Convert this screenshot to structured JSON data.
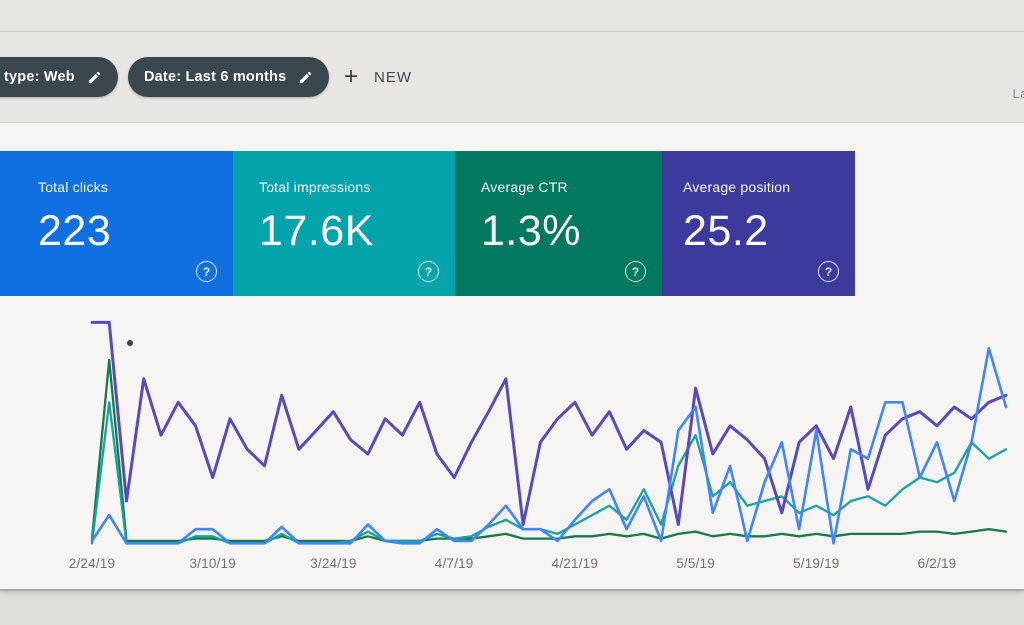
{
  "toolbar": {
    "chips": [
      {
        "label": "type: Web",
        "icon": "pencil-icon"
      },
      {
        "label": "Date: Last 6 months",
        "icon": "pencil-icon"
      }
    ],
    "new_button": {
      "label": "NEW"
    },
    "top_right_partial_text": "La"
  },
  "icons": {
    "plus": "+",
    "help": "?"
  },
  "metric_cards": [
    {
      "label": "Total clicks",
      "value": "223",
      "color": "#1170e0"
    },
    {
      "label": "Total impressions",
      "value": "17.6K",
      "color": "#02a3ab"
    },
    {
      "label": "Average CTR",
      "value": "1.3%",
      "color": "#00795f"
    },
    {
      "label": "Average position",
      "value": "25.2",
      "color": "#3d3a9e"
    }
  ],
  "chart_data": {
    "type": "line",
    "title": "",
    "xlabel": "",
    "ylabel": "",
    "y_axis_note": "no y-axis shown; each series independently scaled; values are percent of plot height",
    "x_range": "2/24/19 to ~6/10/19, one point per ~2 days",
    "grid": "off",
    "legend": "none (colors match metric cards)",
    "x_tick_labels": [
      "2/24/19",
      "3/10/19",
      "3/24/19",
      "4/7/19",
      "4/21/19",
      "5/5/19",
      "5/19/19",
      "6/2/19"
    ],
    "x_tick_indices": [
      0,
      7,
      14,
      21,
      28,
      35,
      42,
      49
    ],
    "series": [
      {
        "name": "Clicks",
        "color": "#4285f4",
        "values": [
          3,
          14,
          2,
          2,
          2,
          2,
          8,
          8,
          2,
          2,
          2,
          9,
          2,
          2,
          2,
          2,
          10,
          3,
          2,
          2,
          8,
          3,
          3,
          10,
          18,
          8,
          8,
          3,
          12,
          20,
          25,
          8,
          22,
          3,
          50,
          60,
          15,
          35,
          3,
          28,
          45,
          8,
          50,
          2,
          42,
          38,
          62,
          62,
          30,
          45,
          20,
          45,
          85,
          60
        ]
      },
      {
        "name": "Impressions",
        "color": "#17a29e",
        "values": [
          2,
          62,
          2,
          2,
          2,
          2,
          5,
          5,
          2,
          2,
          2,
          6,
          2,
          2,
          2,
          3,
          7,
          3,
          3,
          3,
          6,
          4,
          5,
          9,
          12,
          8,
          8,
          6,
          10,
          14,
          18,
          12,
          25,
          10,
          35,
          48,
          22,
          28,
          18,
          20,
          22,
          15,
          18,
          14,
          20,
          22,
          18,
          25,
          30,
          28,
          32,
          45,
          38,
          42
        ]
      },
      {
        "name": "CTR",
        "color": "#14794b",
        "values": [
          4,
          80,
          3,
          3,
          3,
          3,
          4,
          4,
          3,
          3,
          3,
          5,
          3,
          3,
          3,
          3,
          5,
          3,
          3,
          3,
          4,
          4,
          4,
          5,
          6,
          4,
          4,
          4,
          5,
          5,
          6,
          5,
          6,
          4,
          6,
          7,
          5,
          6,
          5,
          5,
          6,
          5,
          6,
          5,
          6,
          6,
          6,
          6,
          7,
          7,
          6,
          7,
          8,
          7
        ]
      },
      {
        "name": "Position",
        "color": "#5a49b8",
        "values": [
          96,
          96,
          20,
          72,
          48,
          62,
          52,
          30,
          55,
          42,
          35,
          65,
          42,
          50,
          58,
          46,
          40,
          55,
          48,
          62,
          40,
          30,
          45,
          58,
          72,
          10,
          45,
          55,
          62,
          48,
          58,
          42,
          50,
          45,
          10,
          68,
          40,
          52,
          46,
          38,
          15,
          45,
          52,
          38,
          60,
          25,
          48,
          55,
          58,
          52,
          60,
          55,
          62,
          65
        ]
      }
    ]
  }
}
